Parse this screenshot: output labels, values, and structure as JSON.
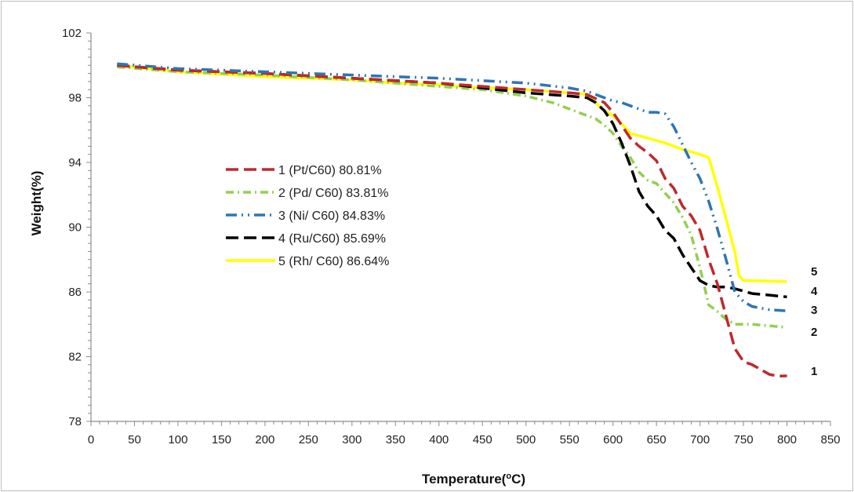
{
  "chart_data": {
    "type": "line",
    "xlabel": "Temperature(°C)",
    "xlabel_parts": {
      "pre": "Temperature(",
      "sup": "o",
      "post": "C)"
    },
    "ylabel": "Weight(%)",
    "xlim": [
      0,
      850
    ],
    "ylim": [
      78,
      102
    ],
    "x_ticks": [
      0,
      50,
      100,
      150,
      200,
      250,
      300,
      350,
      400,
      450,
      500,
      550,
      600,
      650,
      700,
      750,
      800,
      850
    ],
    "y_ticks": [
      78,
      82,
      86,
      90,
      94,
      98,
      102
    ],
    "grid": false,
    "legend_position": "left",
    "series": [
      {
        "name": "1 (Pt/C60) 80.81%",
        "end_label": "1",
        "color": "#c0282d",
        "dash": "long-dash",
        "x": [
          30,
          100,
          200,
          300,
          400,
          450,
          500,
          550,
          570,
          590,
          600,
          610,
          620,
          630,
          640,
          650,
          660,
          670,
          680,
          690,
          700,
          710,
          720,
          730,
          740,
          750,
          760,
          770,
          780,
          790,
          800
        ],
        "y": [
          100.0,
          99.7,
          99.5,
          99.2,
          98.9,
          98.7,
          98.5,
          98.3,
          98.2,
          97.7,
          97.1,
          96.3,
          95.5,
          95.0,
          94.6,
          94.1,
          93.0,
          92.4,
          91.3,
          90.7,
          89.8,
          88.0,
          86.5,
          84.5,
          82.5,
          81.7,
          81.5,
          81.2,
          80.9,
          80.8,
          80.81
        ]
      },
      {
        "name": "2 (Pd/ C60) 83.81%",
        "end_label": "2",
        "color": "#92d050",
        "dash": "dash-dot",
        "x": [
          30,
          100,
          200,
          300,
          400,
          450,
          500,
          530,
          550,
          570,
          580,
          590,
          600,
          610,
          620,
          630,
          640,
          650,
          660,
          670,
          680,
          690,
          700,
          710,
          720,
          730,
          740,
          760,
          800
        ],
        "y": [
          99.9,
          99.6,
          99.4,
          99.1,
          98.7,
          98.5,
          98.1,
          97.7,
          97.3,
          96.9,
          96.7,
          96.3,
          95.8,
          95.0,
          94.3,
          93.4,
          92.9,
          92.7,
          92.1,
          91.5,
          90.6,
          89.5,
          87.5,
          85.2,
          84.8,
          84.3,
          84.0,
          84.0,
          83.81
        ]
      },
      {
        "name": "3 (Ni/ C60) 84.83%",
        "end_label": "3",
        "color": "#2e75b6",
        "dash": "dash-dot-dot",
        "x": [
          30,
          100,
          200,
          300,
          400,
          500,
          550,
          570,
          580,
          590,
          600,
          610,
          620,
          630,
          640,
          650,
          660,
          670,
          680,
          690,
          700,
          710,
          720,
          730,
          740,
          750,
          760,
          780,
          800
        ],
        "y": [
          100.1,
          99.8,
          99.6,
          99.4,
          99.2,
          98.9,
          98.6,
          98.4,
          98.2,
          98.0,
          97.8,
          97.7,
          97.5,
          97.3,
          97.1,
          97.1,
          97.0,
          96.2,
          95.1,
          94.0,
          93.0,
          91.6,
          89.9,
          88.0,
          86.0,
          85.4,
          85.1,
          84.9,
          84.83
        ]
      },
      {
        "name": "4 (Ru/C60) 85.69%",
        "end_label": "4",
        "color": "#000000",
        "dash": "long-dash",
        "x": [
          30,
          100,
          200,
          300,
          400,
          450,
          500,
          550,
          570,
          580,
          590,
          600,
          610,
          620,
          630,
          640,
          650,
          660,
          670,
          680,
          690,
          700,
          710,
          720,
          730,
          740,
          760,
          780,
          800
        ],
        "y": [
          100.0,
          99.7,
          99.5,
          99.2,
          98.9,
          98.6,
          98.3,
          98.1,
          98.0,
          97.7,
          97.2,
          96.4,
          95.2,
          93.8,
          92.2,
          91.3,
          90.7,
          89.8,
          89.3,
          88.3,
          87.5,
          86.7,
          86.4,
          86.3,
          86.3,
          86.2,
          85.9,
          85.8,
          85.69
        ]
      },
      {
        "name": "5 (Rh/ C60) 86.64%",
        "end_label": "5",
        "color": "#ffff00",
        "dash": "solid",
        "x": [
          30,
          100,
          200,
          300,
          350,
          400,
          450,
          500,
          550,
          570,
          580,
          590,
          600,
          610,
          620,
          640,
          660,
          680,
          700,
          710,
          720,
          730,
          740,
          745,
          750,
          760,
          780,
          800
        ],
        "y": [
          100.0,
          99.6,
          99.3,
          99.1,
          98.9,
          98.8,
          98.6,
          98.5,
          98.3,
          98.2,
          97.7,
          97.2,
          96.9,
          96.4,
          95.8,
          95.5,
          95.2,
          94.8,
          94.5,
          94.3,
          92.5,
          90.5,
          88.5,
          87.0,
          86.7,
          86.7,
          86.66,
          86.64
        ]
      }
    ]
  }
}
